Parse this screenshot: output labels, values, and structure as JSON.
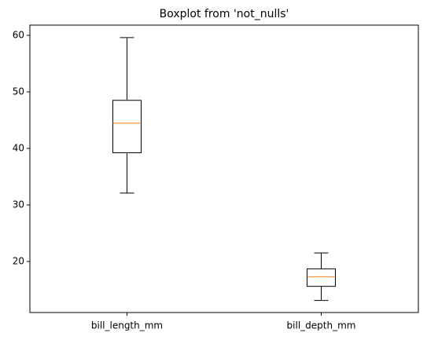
{
  "chart_data": {
    "type": "box",
    "title": "Boxplot from 'not_nulls'",
    "categories": [
      "bill_length_mm",
      "bill_depth_mm"
    ],
    "boxes": [
      {
        "min": 32.1,
        "q1": 39.225,
        "median": 44.45,
        "q3": 48.5,
        "max": 59.6
      },
      {
        "min": 13.1,
        "q1": 15.6,
        "median": 17.3,
        "q3": 18.7,
        "max": 21.5
      }
    ],
    "color": "#000000",
    "median_color": "#ff7f0e",
    "ylim": [
      10.97,
      61.8
    ],
    "yticks": [
      20,
      30,
      40,
      50,
      60
    ]
  }
}
